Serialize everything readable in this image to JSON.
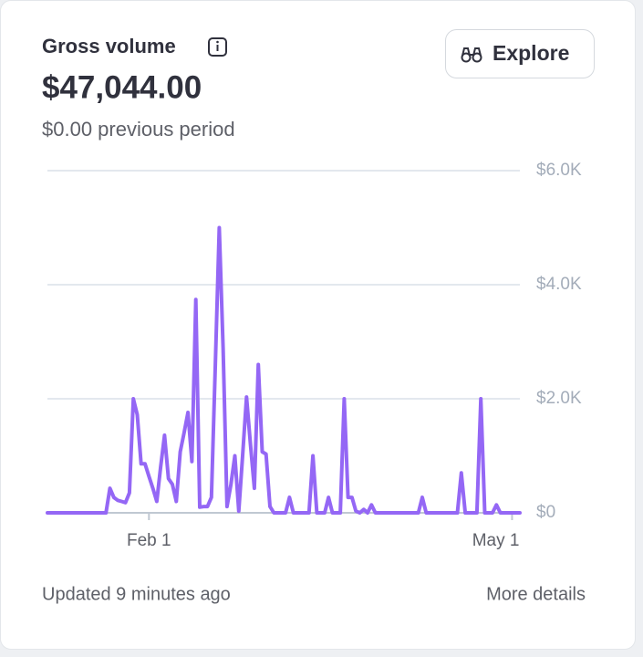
{
  "header": {
    "title": "Gross volume",
    "amount": "$47,044.00",
    "previous": "$0.00 previous period"
  },
  "button": {
    "label": "Explore"
  },
  "footer": {
    "updated": "Updated 9 minutes ago",
    "link": "More details"
  },
  "chart_data": {
    "type": "line",
    "color": "#9467f5",
    "grid": true,
    "categories": [
      null,
      null,
      null,
      null,
      null,
      null,
      null,
      null,
      null,
      null,
      null,
      null,
      null,
      null,
      null,
      null,
      null,
      null,
      null,
      null,
      null,
      null,
      null,
      null,
      null,
      null,
      "Feb 1",
      null,
      null,
      null,
      null,
      null,
      null,
      null,
      null,
      null,
      null,
      null,
      null,
      null,
      null,
      null,
      null,
      null,
      null,
      null,
      null,
      null,
      null,
      null,
      null,
      null,
      null,
      null,
      null,
      null,
      null,
      null,
      null,
      null,
      null,
      null,
      null,
      null,
      null,
      null,
      null,
      null,
      null,
      null,
      null,
      null,
      null,
      null,
      null,
      null,
      null,
      null,
      null,
      null,
      null,
      null,
      null,
      null,
      null,
      null,
      null,
      null,
      null,
      null,
      null,
      null,
      null,
      null,
      null,
      null,
      null,
      null,
      null,
      null,
      null,
      null,
      null,
      null,
      null,
      null,
      null,
      null,
      null,
      null,
      null,
      null,
      null,
      null,
      null,
      null,
      null,
      null,
      null,
      "May 1",
      null,
      null
    ],
    "values": [
      0,
      0,
      0,
      0,
      0,
      0,
      0,
      0,
      0,
      0,
      0,
      0,
      0,
      0,
      0,
      0,
      430,
      270,
      220,
      200,
      180,
      350,
      2000,
      1720,
      860,
      860,
      640,
      430,
      200,
      800,
      1360,
      600,
      500,
      200,
      1070,
      1400,
      1760,
      900,
      3740,
      100,
      110,
      110,
      270,
      2600,
      5000,
      2900,
      110,
      500,
      1000,
      30,
      1000,
      2030,
      1200,
      430,
      2600,
      1070,
      1030,
      110,
      0,
      0,
      0,
      0,
      270,
      0,
      0,
      0,
      0,
      0,
      1000,
      0,
      0,
      0,
      270,
      0,
      0,
      0,
      2000,
      270,
      270,
      30,
      0,
      60,
      0,
      140,
      0,
      0,
      0,
      0,
      0,
      0,
      0,
      0,
      0,
      0,
      0,
      0,
      270,
      0,
      0,
      0,
      0,
      0,
      0,
      0,
      0,
      0,
      700,
      0,
      0,
      0,
      0,
      2000,
      0,
      0,
      0,
      140,
      0,
      0,
      0,
      0,
      0,
      0
    ],
    "ylim": [
      0,
      6000
    ],
    "yticks": [
      {
        "value": 0,
        "label": "$0"
      },
      {
        "value": 2000,
        "label": "$2.0K"
      },
      {
        "value": 4000,
        "label": "$4.0K"
      },
      {
        "value": 6000,
        "label": "$6.0K"
      }
    ]
  }
}
